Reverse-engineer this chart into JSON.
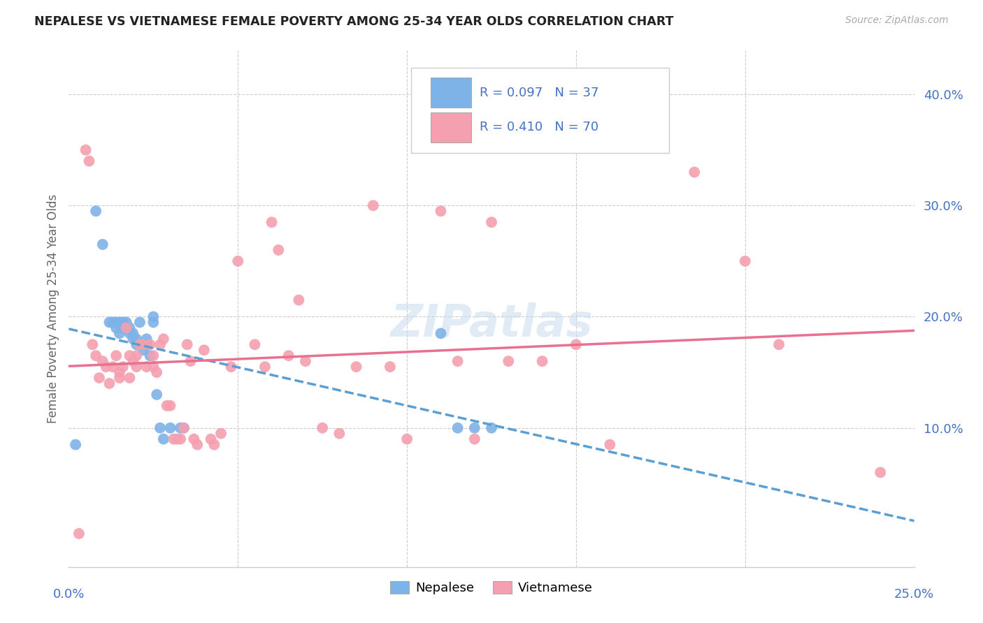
{
  "title": "NEPALESE VS VIETNAMESE FEMALE POVERTY AMONG 25-34 YEAR OLDS CORRELATION CHART",
  "source": "Source: ZipAtlas.com",
  "ylabel": "Female Poverty Among 25-34 Year Olds",
  "ytick_values": [
    0.1,
    0.2,
    0.3,
    0.4
  ],
  "xlim": [
    0.0,
    0.25
  ],
  "ylim": [
    -0.025,
    0.44
  ],
  "watermark": "ZIPatlas",
  "nepalese_color": "#7eb3e8",
  "vietnamese_color": "#f4a0b0",
  "nepalese_line_color": "#5a9fd4",
  "vietnamese_line_color": "#e87090",
  "R_nepalese": 0.097,
  "N_nepalese": 37,
  "R_vietnamese": 0.41,
  "N_vietnamese": 70,
  "nepalese_x": [
    0.002,
    0.008,
    0.01,
    0.012,
    0.013,
    0.014,
    0.014,
    0.015,
    0.015,
    0.016,
    0.016,
    0.017,
    0.017,
    0.018,
    0.018,
    0.019,
    0.019,
    0.02,
    0.02,
    0.021,
    0.022,
    0.022,
    0.023,
    0.023,
    0.024,
    0.025,
    0.025,
    0.026,
    0.027,
    0.028,
    0.03,
    0.033,
    0.034,
    0.11,
    0.115,
    0.12,
    0.125
  ],
  "nepalese_y": [
    0.085,
    0.295,
    0.265,
    0.195,
    0.195,
    0.195,
    0.19,
    0.195,
    0.185,
    0.195,
    0.19,
    0.195,
    0.19,
    0.19,
    0.185,
    0.185,
    0.18,
    0.18,
    0.175,
    0.195,
    0.175,
    0.17,
    0.18,
    0.175,
    0.165,
    0.2,
    0.195,
    0.13,
    0.1,
    0.09,
    0.1,
    0.1,
    0.1,
    0.185,
    0.1,
    0.1,
    0.1
  ],
  "vietnamese_x": [
    0.003,
    0.005,
    0.006,
    0.007,
    0.008,
    0.009,
    0.01,
    0.011,
    0.012,
    0.013,
    0.014,
    0.015,
    0.015,
    0.016,
    0.017,
    0.018,
    0.018,
    0.019,
    0.02,
    0.02,
    0.021,
    0.022,
    0.023,
    0.024,
    0.025,
    0.025,
    0.026,
    0.027,
    0.028,
    0.029,
    0.03,
    0.031,
    0.032,
    0.033,
    0.034,
    0.035,
    0.036,
    0.037,
    0.038,
    0.04,
    0.042,
    0.043,
    0.045,
    0.048,
    0.05,
    0.055,
    0.058,
    0.06,
    0.062,
    0.065,
    0.068,
    0.07,
    0.075,
    0.08,
    0.085,
    0.09,
    0.095,
    0.1,
    0.11,
    0.115,
    0.12,
    0.125,
    0.13,
    0.14,
    0.15,
    0.16,
    0.185,
    0.2,
    0.21,
    0.24
  ],
  "vietnamese_y": [
    0.005,
    0.35,
    0.34,
    0.175,
    0.165,
    0.145,
    0.16,
    0.155,
    0.14,
    0.155,
    0.165,
    0.15,
    0.145,
    0.155,
    0.19,
    0.145,
    0.165,
    0.16,
    0.165,
    0.155,
    0.175,
    0.175,
    0.155,
    0.175,
    0.155,
    0.165,
    0.15,
    0.175,
    0.18,
    0.12,
    0.12,
    0.09,
    0.09,
    0.09,
    0.1,
    0.175,
    0.16,
    0.09,
    0.085,
    0.17,
    0.09,
    0.085,
    0.095,
    0.155,
    0.25,
    0.175,
    0.155,
    0.285,
    0.26,
    0.165,
    0.215,
    0.16,
    0.1,
    0.095,
    0.155,
    0.3,
    0.155,
    0.09,
    0.295,
    0.16,
    0.09,
    0.285,
    0.16,
    0.16,
    0.175,
    0.085,
    0.33,
    0.25,
    0.175,
    0.06
  ]
}
